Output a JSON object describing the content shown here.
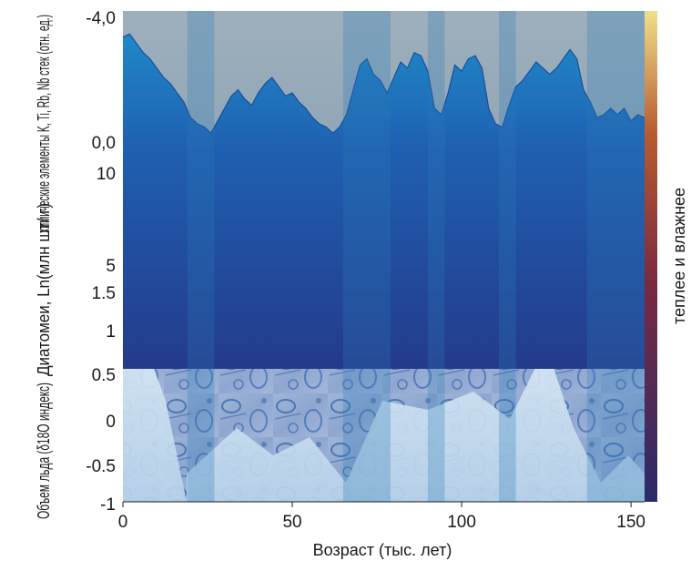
{
  "chart_data": {
    "type": "area",
    "title": "",
    "xlabel": "Возраст (тыс. лет)",
    "xlim": [
      0,
      154
    ],
    "x_ticks": [
      "0",
      "50",
      "100",
      "150"
    ],
    "colorbar_label": "теплее и влажнее",
    "colorbar_colors": [
      "#2a2a6a",
      "#7a2a40",
      "#b85a30",
      "#f0e08a"
    ],
    "panels": [
      {
        "ylabel": "химические элементы K, Ti, Rb, Nb стек (отн. ед.)",
        "ylim": [
          -4.0,
          0.0
        ],
        "y_ticks": [
          "-4,0",
          "0,0"
        ]
      },
      {
        "ylabel": "Диатомеи, Ln(млн шт/ г)",
        "ylim": [
          10,
          5
        ],
        "y_ticks": [
          "10",
          "5"
        ]
      },
      {
        "ylabel": "Объем льда (δ18О индекс)",
        "ylim": [
          1.5,
          -1
        ],
        "y_ticks": [
          "1.5",
          "1",
          "0.5",
          "0",
          "-0.5",
          "-1"
        ]
      }
    ],
    "warm_bands": [
      [
        19,
        27
      ],
      [
        65,
        79
      ],
      [
        90,
        95
      ],
      [
        111,
        116
      ],
      [
        137,
        154
      ]
    ],
    "series": [
      {
        "x": [
          0,
          2,
          4,
          6,
          8,
          10,
          12,
          14,
          16,
          18,
          20,
          22,
          24,
          26,
          28,
          30,
          32,
          34,
          36,
          38,
          40,
          42,
          44,
          46,
          48,
          50,
          52,
          54,
          56,
          58,
          60,
          62,
          64,
          66,
          68,
          70,
          72,
          74,
          76,
          78,
          80,
          82,
          84,
          86,
          88,
          90,
          92,
          94,
          96,
          98,
          100,
          102,
          104,
          106,
          108,
          110,
          112,
          114,
          116,
          118,
          120,
          122,
          124,
          126,
          128,
          130,
          132,
          134,
          136,
          138,
          140,
          142,
          144,
          146,
          148,
          150,
          152,
          154
        ],
        "values": [
          -3.3,
          -3.4,
          -3.1,
          -2.8,
          -2.6,
          -2.3,
          -2.0,
          -1.8,
          -1.5,
          -1.2,
          -0.7,
          -0.5,
          -0.4,
          -0.2,
          -0.6,
          -1.0,
          -1.4,
          -1.6,
          -1.3,
          -1.1,
          -1.5,
          -1.8,
          -2.0,
          -1.7,
          -1.4,
          -1.5,
          -1.2,
          -1.0,
          -0.7,
          -0.5,
          -0.4,
          -0.2,
          -0.4,
          -0.8,
          -1.6,
          -2.4,
          -2.6,
          -2.1,
          -1.9,
          -1.5,
          -2.0,
          -2.5,
          -2.3,
          -2.8,
          -2.7,
          -2.2,
          -1.0,
          -0.8,
          -1.5,
          -2.4,
          -2.2,
          -2.6,
          -2.7,
          -2.3,
          -1.0,
          -0.5,
          -0.4,
          -1.1,
          -1.7,
          -1.9,
          -2.2,
          -2.5,
          -2.3,
          -2.1,
          -2.3,
          -2.6,
          -2.9,
          -2.6,
          -1.6,
          -1.2,
          -0.7,
          -0.8,
          -1.0,
          -0.8,
          -1.0,
          -0.6,
          -0.8,
          -0.7
        ]
      }
    ]
  }
}
